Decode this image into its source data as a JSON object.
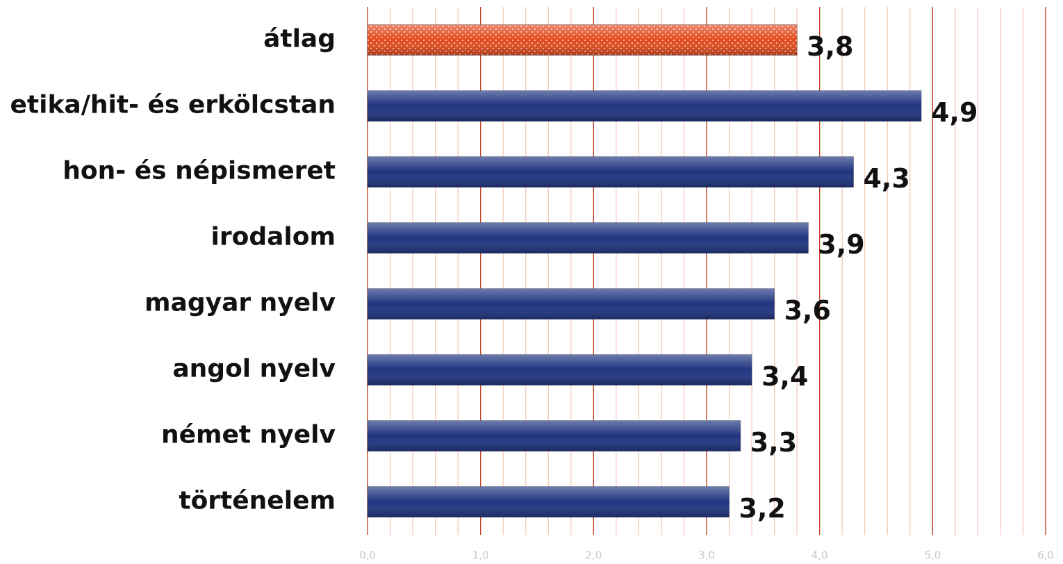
{
  "chart_data": {
    "type": "bar",
    "orientation": "horizontal",
    "categories": [
      "átlag",
      "etika/hit- és erkölcstan",
      "hon- és népismeret",
      "irodalom",
      "magyar nyelv",
      "angol nyelv",
      "német nyelv",
      "történelem"
    ],
    "values": [
      3.8,
      4.9,
      4.3,
      3.9,
      3.6,
      3.4,
      3.3,
      3.2
    ],
    "value_labels": [
      "3,8",
      "4,9",
      "4,3",
      "3,9",
      "3,6",
      "3,4",
      "3,3",
      "3,2"
    ],
    "colors": [
      "#e24a1c",
      "#1f3480",
      "#1f3480",
      "#1f3480",
      "#1f3480",
      "#1f3480",
      "#1f3480",
      "#1f3480"
    ],
    "xlim": [
      0,
      6
    ],
    "xticks": [
      {
        "value": 0,
        "label": "0,0"
      },
      {
        "value": 1,
        "label": "1,0"
      },
      {
        "value": 2,
        "label": "2,0"
      },
      {
        "value": 3,
        "label": "3,0"
      },
      {
        "value": 4,
        "label": "4,0"
      },
      {
        "value": 5,
        "label": "5,0"
      },
      {
        "value": 6,
        "label": "6,0"
      }
    ],
    "grid": true
  }
}
